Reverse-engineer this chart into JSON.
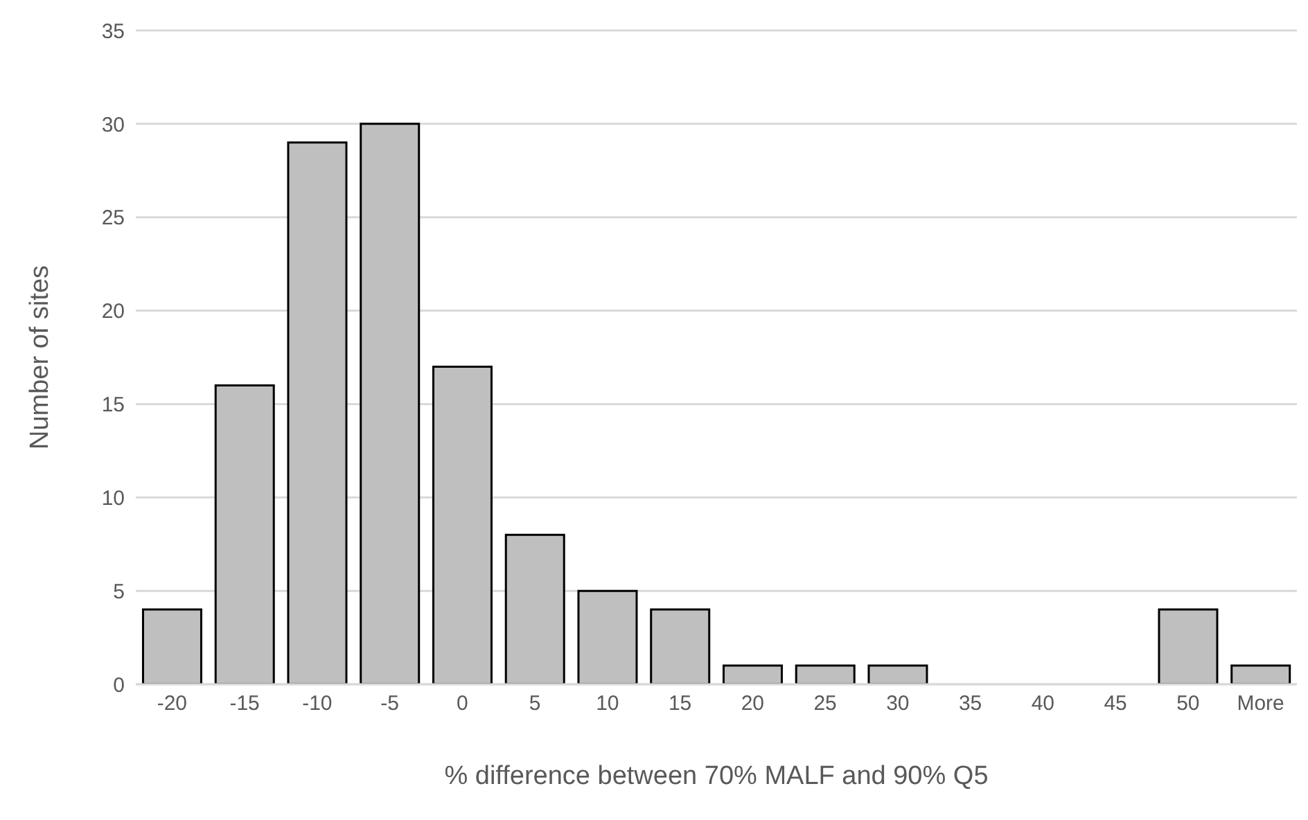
{
  "chart_data": {
    "type": "bar",
    "xlabel": "% difference between 70% MALF and 90% Q5",
    "ylabel": "Number of sites",
    "categories": [
      "-20",
      "-15",
      "-10",
      "-5",
      "0",
      "5",
      "10",
      "15",
      "20",
      "25",
      "30",
      "35",
      "40",
      "45",
      "50",
      "More"
    ],
    "values": [
      4,
      16,
      29,
      30,
      17,
      8,
      5,
      4,
      1,
      1,
      1,
      0,
      0,
      0,
      4,
      1
    ],
    "color": "#bfbfbf",
    "ylim": [
      0,
      35
    ],
    "yticks": [
      0,
      5,
      10,
      15,
      20,
      25,
      30,
      35
    ],
    "grid": "y",
    "legend": false
  }
}
